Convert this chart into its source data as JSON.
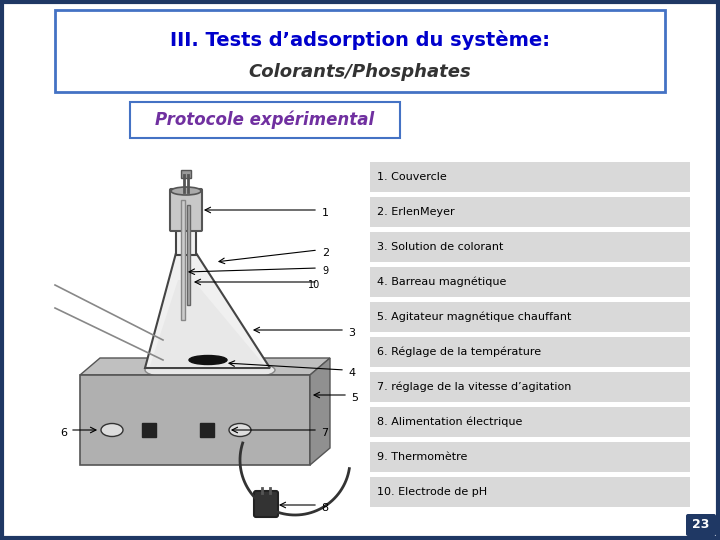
{
  "background_color": "#ffffff",
  "slide_bg": "#ffffff",
  "title_line1": "III. Tests d’adsorption du système:",
  "title_line2": "Colorants/Phosphates",
  "subtitle": "Protocole expérimental",
  "title_box_color": "#ffffff",
  "title_border_color": "#4472c4",
  "subtitle_box_color": "#ffffff",
  "subtitle_border_color": "#4472c4",
  "subtitle_text_color": "#7030a0",
  "title_color": "#0000cc",
  "labels": [
    "1. Couvercle",
    "2. ErlenMeyer",
    "3. Solution de colorant",
    "4. Barreau magnétique",
    "5. Agitateur magnétique chauffant",
    "6. Réglage de la température",
    "7. réglage de la vitesse d’agitation",
    "8. Alimentation électrique",
    "9. Thermomètre",
    "10. Electrode de pH"
  ],
  "label_box_color": "#d9d9d9",
  "label_text_color": "#000000",
  "page_number": "23",
  "page_num_bg": "#1f3864",
  "page_num_color": "#ffffff",
  "outer_border_color": "#1f3864"
}
